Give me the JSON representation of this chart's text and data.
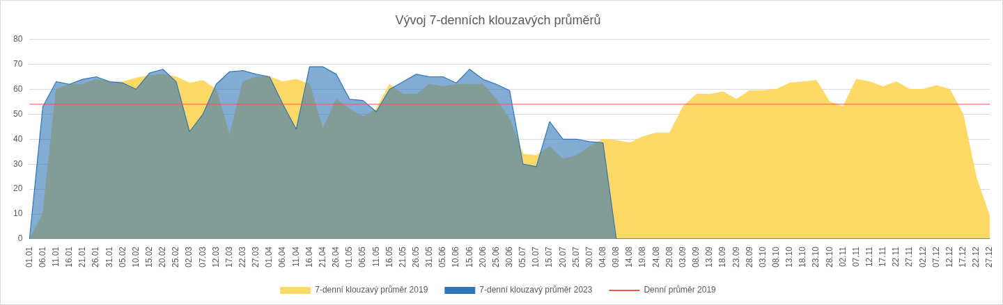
{
  "chart_data": {
    "type": "area",
    "title": "Vývoj 7-denních klouzavých průměrů",
    "categories": [
      "01.01",
      "06.01",
      "11.01",
      "16.01",
      "21.01",
      "26.01",
      "31.01",
      "05.02",
      "10.02",
      "15.02",
      "20.02",
      "25.02",
      "02.03",
      "07.03",
      "12.03",
      "17.03",
      "22.03",
      "27.03",
      "01.04",
      "06.04",
      "11.04",
      "16.04",
      "21.04",
      "26.04",
      "01.05",
      "06.05",
      "11.05",
      "16.05",
      "21.05",
      "26.05",
      "31.05",
      "05.06",
      "10.06",
      "15.06",
      "20.06",
      "25.06",
      "30.06",
      "05.07",
      "10.07",
      "15.07",
      "20.07",
      "25.07",
      "30.07",
      "04.08",
      "09.08",
      "14.08",
      "19.08",
      "24.08",
      "29.08",
      "03.09",
      "08.09",
      "13.09",
      "18.09",
      "23.09",
      "28.09",
      "03.10",
      "08.10",
      "13.10",
      "18.10",
      "23.10",
      "28.10",
      "02.11",
      "07.11",
      "12.11",
      "17.11",
      "22.11",
      "27.11",
      "02.12",
      "07.12",
      "12.12",
      "17.12",
      "22.12",
      "27.12"
    ],
    "series": [
      {
        "name": "7-denní klouzavý průměr 2019",
        "color": "#ffd966",
        "values": [
          0,
          10,
          60,
          62,
          62,
          64,
          63,
          63,
          64.5,
          65.5,
          66,
          65,
          62.5,
          63.5,
          60,
          41.5,
          63,
          65,
          65,
          63,
          64,
          62,
          44,
          56,
          52,
          49,
          52,
          62,
          58,
          58,
          62,
          61,
          62,
          62,
          62,
          56,
          48,
          34,
          33.5,
          37,
          32,
          33.5,
          37,
          40,
          39.5,
          38.5,
          41,
          42.5,
          42.5,
          53,
          58,
          58,
          59,
          56,
          59.5,
          59.5,
          60,
          62.5,
          63,
          63.5,
          55,
          53,
          64,
          63,
          61,
          63,
          60,
          60,
          61.5,
          60,
          50,
          24.5,
          9
        ]
      },
      {
        "name": "7-denní klouzavý průměr 2023",
        "color": "#2e75b6",
        "values": [
          0,
          53,
          63,
          62,
          64,
          65,
          63,
          62.5,
          60,
          66.5,
          68,
          63,
          43,
          50,
          62,
          67,
          67.5,
          66,
          65,
          54,
          44,
          69,
          69,
          66,
          56,
          55.5,
          51,
          60,
          63,
          66,
          65,
          65,
          62.5,
          68,
          64,
          62,
          59.5,
          30,
          29,
          47,
          40,
          40,
          39,
          38.5,
          0,
          0,
          0,
          0,
          0,
          0,
          0,
          0,
          0,
          0,
          0,
          0,
          0,
          0,
          0,
          0,
          0,
          0,
          0,
          0,
          0,
          0,
          0,
          0,
          0,
          0,
          0,
          0,
          0
        ]
      }
    ],
    "ylim": [
      0,
      80
    ],
    "yticks": [
      0,
      10,
      20,
      30,
      40,
      50,
      60,
      70,
      80
    ],
    "grid": "y",
    "legend": "bottom",
    "marker": "none",
    "ref_lines": [
      {
        "axis": "y",
        "value": 54,
        "label": "Denní průměr 2019",
        "color": "#ff5050"
      }
    ]
  }
}
